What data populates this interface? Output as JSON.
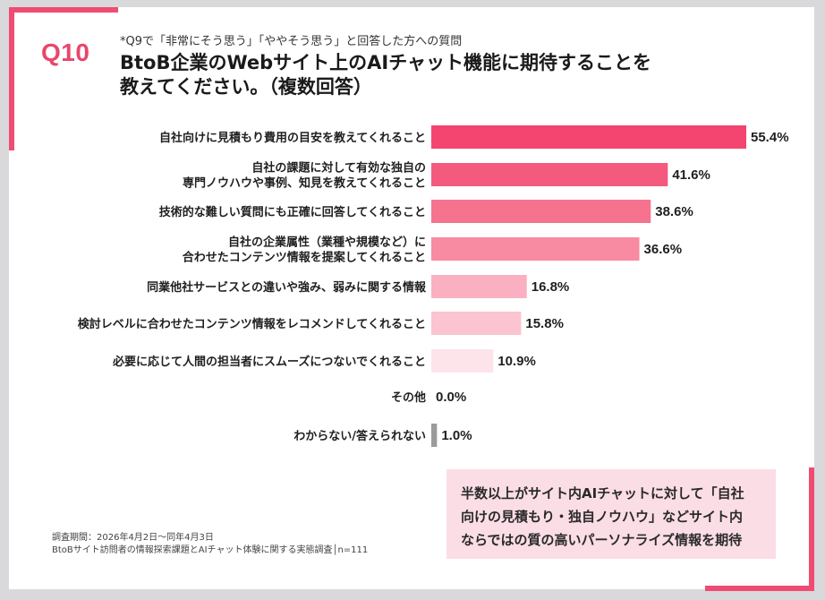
{
  "header": {
    "question_label": "Q10",
    "note": "*Q9で「非常にそう思う」「ややそう思う」と回答した方への質問",
    "title_lines": [
      "BtoB企業のWebサイト上のAIチャット機能に期待することを",
      "教えてください。（複数回答）"
    ]
  },
  "chart_data": {
    "type": "bar",
    "orientation": "horizontal",
    "categories": [
      [
        "自社向けに見積もり費用の目安を教えてくれること"
      ],
      [
        "自社の課題に対して有効な独自の",
        "専門ノウハウや事例、知見を教えてくれること"
      ],
      [
        "技術的な難しい質問にも正確に回答してくれること"
      ],
      [
        "自社の企業属性（業種や規模など）に",
        "合わせたコンテンツ情報を提案してくれること"
      ],
      [
        "同業他社サービスとの違いや強み、弱みに関する情報"
      ],
      [
        "検討レベルに合わせたコンテンツ情報をレコメンドしてくれること"
      ],
      [
        "必要に応じて人間の担当者にスムーズにつないでくれること"
      ],
      [
        "その他"
      ],
      [
        "わからない/答えられない"
      ]
    ],
    "values": [
      55.4,
      41.6,
      38.6,
      36.6,
      16.8,
      15.8,
      10.9,
      0.0,
      1.0
    ],
    "value_labels": [
      "55.4%",
      "41.6%",
      "38.6%",
      "36.6%",
      "16.8%",
      "15.8%",
      "10.9%",
      "0.0%",
      "1.0%"
    ],
    "colors": [
      "#f3456f",
      "#f45a7e",
      "#f6738f",
      "#f88aa1",
      "#fbb0c2",
      "#fcc3d1",
      "#fde4ea",
      "#f6f6f6",
      "#9b9b9b"
    ],
    "xlim": [
      0,
      55.4
    ]
  },
  "callout": {
    "lines": [
      "半数以上がサイト内AIチャットに対して「自社",
      "向けの見積もり・独自ノウハウ」などサイト内",
      "ならではの質の高いパーソナライズ情報を期待"
    ]
  },
  "footer": {
    "period": "調査期間：2026年4月2日〜同年4月3日",
    "source": "BtoBサイト訪問者の情報探索課題とAIチャット体験に関する実態調査│n=111"
  },
  "colors": {
    "accent": "#ef4b73",
    "callout_bg": "#fbdde6"
  }
}
